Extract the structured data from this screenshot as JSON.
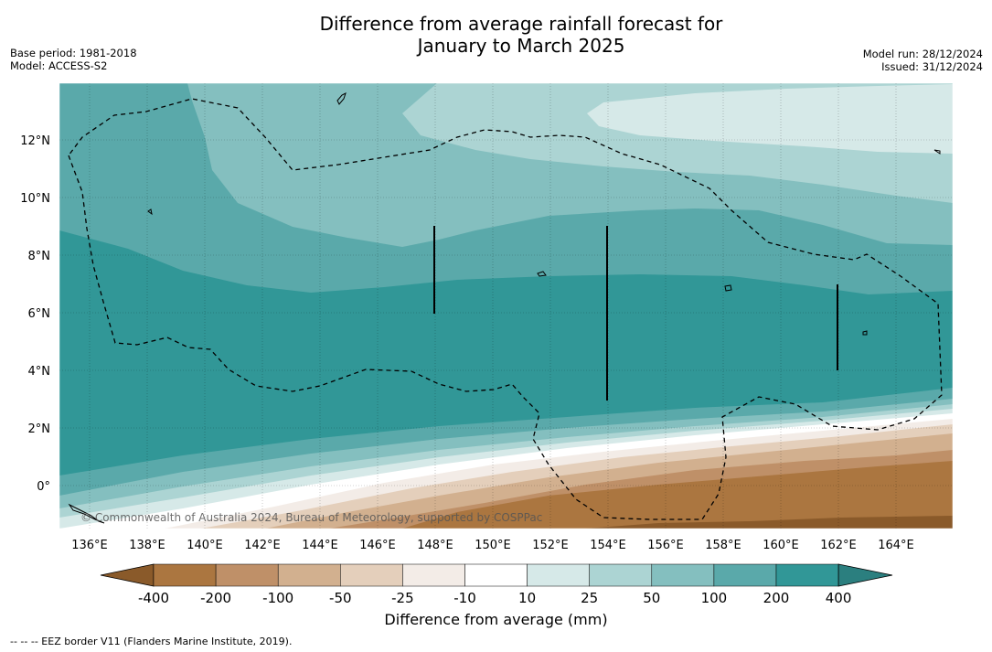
{
  "title": {
    "line1": "Difference from average rainfall forecast for",
    "line2": "January to March 2025"
  },
  "meta": {
    "base_period": "Base period: 1981-2018",
    "model": "Model: ACCESS-S2",
    "model_run": "Model run: 28/12/2024",
    "issued": "Issued: 31/12/2024"
  },
  "map": {
    "lon_ticks": [
      "136°E",
      "138°E",
      "140°E",
      "142°E",
      "144°E",
      "146°E",
      "148°E",
      "150°E",
      "152°E",
      "154°E",
      "156°E",
      "158°E",
      "160°E",
      "162°E",
      "164°E"
    ],
    "lat_ticks": [
      "12°N",
      "10°N",
      "8°N",
      "6°N",
      "4°N",
      "2°N",
      "0°"
    ],
    "copyright": "© Commonwealth of Australia 2024, Bureau of Meteorology, supported by COSPPac"
  },
  "colorbar": {
    "label": "Difference from average (mm)",
    "ticks": [
      "-400",
      "-200",
      "-100",
      "-50",
      "-25",
      "-10",
      "10",
      "25",
      "50",
      "100",
      "200",
      "400"
    ],
    "colors": {
      "lt_-400": "#8a5a2a",
      "-400_-200": "#ab7640",
      "-200_-100": "#bf9068",
      "-100_-50": "#d2b08f",
      "-50_-25": "#e4cfbb",
      "-25_-10": "#f3ece7",
      "-10_10": "#ffffff",
      "10_25": "#d6e9e8",
      "25_50": "#acd4d3",
      "50_100": "#84bfbf",
      "100_200": "#5aa9aa",
      "200_400": "#319797",
      "gt_400": "#2b7f7f"
    }
  },
  "footnote": "--  --  -- EEZ border V11 (Flanders Marine Institute, 2019)."
}
